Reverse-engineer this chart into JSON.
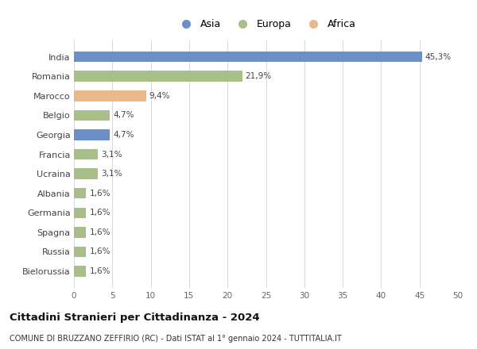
{
  "countries": [
    "India",
    "Romania",
    "Marocco",
    "Belgio",
    "Georgia",
    "Francia",
    "Ucraina",
    "Albania",
    "Germania",
    "Spagna",
    "Russia",
    "Bielorussia"
  ],
  "values": [
    45.3,
    21.9,
    9.4,
    4.7,
    4.7,
    3.1,
    3.1,
    1.6,
    1.6,
    1.6,
    1.6,
    1.6
  ],
  "labels": [
    "45,3%",
    "21,9%",
    "9,4%",
    "4,7%",
    "4,7%",
    "3,1%",
    "3,1%",
    "1,6%",
    "1,6%",
    "1,6%",
    "1,6%",
    "1,6%"
  ],
  "continents": [
    "Asia",
    "Europa",
    "Africa",
    "Europa",
    "Asia",
    "Europa",
    "Europa",
    "Europa",
    "Europa",
    "Europa",
    "Europa",
    "Europa"
  ],
  "colors": {
    "Asia": "#6b8fc9",
    "Europa": "#a8bf8a",
    "Africa": "#e8b98a"
  },
  "xlim": [
    0,
    50
  ],
  "xticks": [
    0,
    5,
    10,
    15,
    20,
    25,
    30,
    35,
    40,
    45,
    50
  ],
  "title": "Cittadini Stranieri per Cittadinanza - 2024",
  "subtitle": "COMUNE DI BRUZZANO ZEFFIRIO (RC) - Dati ISTAT al 1° gennaio 2024 - TUTTITALIA.IT",
  "background_color": "#ffffff",
  "grid_color": "#d8d8d8"
}
